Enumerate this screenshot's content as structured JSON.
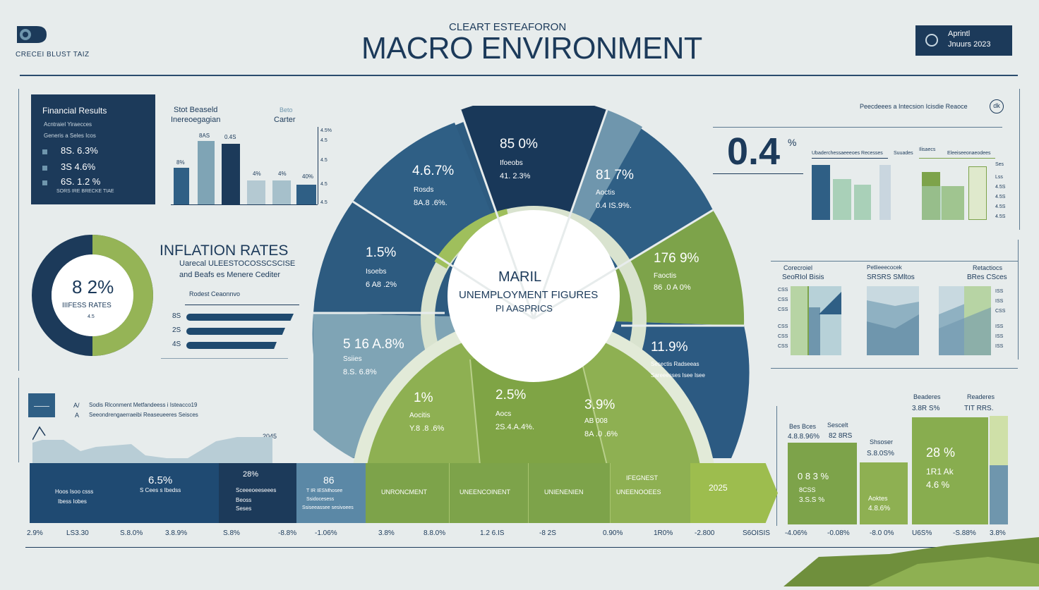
{
  "header": {
    "logo_caption": "CRECEI BLUST TAIZ",
    "kicker": "CLEART ESTEAFORON",
    "title": "MACRO ENVIRONMENT",
    "date_line1": "Aprintl",
    "date_line2": "Jnuurs 2023"
  },
  "financial_panel": {
    "title": "Financial Results",
    "subtitle": "Acntraiel Yiraecces",
    "subtitle2": "Generis a Seles Icos",
    "rows": [
      "8S. 6.3%",
      "3S 4.6%",
      "6S. 1.2 %"
    ],
    "footer": "SORS IRE BRECKE TIAE"
  },
  "small_bar_chart": {
    "title1": "Stot Beaseld",
    "title2": "Inereoegagian",
    "legend1": "Beto",
    "legend2": "Carter",
    "labels": [
      "8%",
      "8AS",
      "0.4S",
      "4%",
      "4%",
      "40%"
    ],
    "axis": [
      "4.5%",
      "4.5",
      "4.5",
      "4.5",
      "4.5"
    ]
  },
  "inflation_panel": {
    "donut_value": "8 2%",
    "donut_label": "IIIFESS RATES",
    "donut_sub": "4.5",
    "title": "INFLATION RATES",
    "subtitle1": "Uarecal ULEESTOCOSSCSCISE",
    "subtitle2": "and Beafs es Menere Cediter",
    "caption": "Rodest Ceaonnvo",
    "bars": [
      {
        "label": "8S",
        "pct": 0.95
      },
      {
        "label": "2S",
        "pct": 0.87
      },
      {
        "label": "4S",
        "pct": 0.8
      }
    ]
  },
  "area_panel": {
    "legend1": "Sodis Rlconment Metfandeess i Isteacco19",
    "legend2": "Seeondrengaerraeibi Reaseueeres Seisces",
    "tag": "A/",
    "tag2": "A",
    "value": "2045"
  },
  "wheel": {
    "center_title": "MARIL",
    "center_sub": "UNEMPLOYMENT FIGURES",
    "center_sub2": "PI AASPRICS",
    "segments": [
      {
        "value": "4.6.7%",
        "label": "Rosds",
        "sub": "8A.8 .6%."
      },
      {
        "value": "85 0%",
        "label": "Ifoeobs",
        "sub": "41. 2.3%"
      },
      {
        "value": "81 7%",
        "label": "Aoctis",
        "sub": "0.4 IS.9%."
      },
      {
        "value": "1.5%",
        "label": "Isoebs",
        "sub": "6 A8 .2%"
      },
      {
        "value": "176 9%",
        "label": "Faoctis",
        "sub": "86 .0 A 0%"
      },
      {
        "value": "5 16 A.8%",
        "label": "Ssiies",
        "sub": "8.S. 6.8%"
      },
      {
        "value": "11.9%",
        "label": "Sesectis Radseeas",
        "sub": "Sareeesses Isee Isee"
      },
      {
        "value": "1%",
        "label": "Aocitis",
        "sub": "Y.8 .8 .6%"
      },
      {
        "value": "2.5%",
        "label": "Aocs",
        "sub": "2S.4.A.4%."
      },
      {
        "value": "3.9%",
        "label": "AB 008",
        "sub": "8A .0 .6%"
      }
    ]
  },
  "right_top": {
    "header": "Peecdeees a Intecsion Icisdie Reaoce",
    "big_value": "0.4",
    "unit": "%",
    "legend1": "Ubaderchessaeeeoes Recesses",
    "legend2": "Suuades",
    "legend3": "Ilisaecs",
    "legend4": "Eleeiseeonaeodees",
    "axis": [
      "Ses",
      "Lss",
      "4.5S",
      "4.5S",
      "4.5S",
      "4.5S"
    ]
  },
  "right_mid": {
    "labels": [
      "Corecroiel",
      "Petlieeecocek",
      "Retactiocs"
    ],
    "labels2": [
      "SeoRIol Bisis",
      "SRSRS SMltos",
      "BRes CSces"
    ],
    "axis_left": [
      "CSS",
      "CSS",
      "CSS",
      "CSS",
      "CSS",
      "CSS"
    ],
    "axis_right": [
      "ISS",
      "ISS",
      "CSS",
      "ISS",
      "ISS",
      "ISS"
    ]
  },
  "right_bottom": {
    "bars": [
      {
        "top": "Bes Bces",
        "topval": "4.8.8.96%",
        "value": "0 8 3 %",
        "label": "8CSS",
        "sub": "3.S.S %"
      },
      {
        "top": "Sescelt",
        "topval": "82 8RS",
        "value": "",
        "label": "",
        "sub": ""
      },
      {
        "top": "Shsoser",
        "topval": "S.8.0S%",
        "value": "",
        "label": "Aoktes",
        "sub": "4.8.6%"
      },
      {
        "top": "Beaderes",
        "topval": "3.8R S%",
        "value": "28 %",
        "label": "1R1 Ak",
        "sub": "4.6 %"
      },
      {
        "top": "Readeres",
        "topval": "TIT RRS.",
        "value": "",
        "label": "",
        "sub": ""
      }
    ]
  },
  "timeline": {
    "segments": [
      {
        "value": "6.5%",
        "line1": "Hoos Isoo csss",
        "line2": "S Cees s Ibedss",
        "line3": "Ibess Iobes"
      },
      {
        "value": "28%",
        "line1": "Sceeeoeeseees",
        "line2": "Beoss",
        "line3": "Seses"
      },
      {
        "value": "86",
        "line1": "T IR IESMhosee",
        "line2": "Ssidocesess",
        "line3": "Ssiseeassee sesivoees"
      },
      {
        "value": "",
        "line1": "UNRONCMENT",
        "line2": "",
        "line3": ""
      },
      {
        "value": "",
        "line1": "UNEENCOINENT",
        "line2": "",
        "line3": ""
      },
      {
        "value": "",
        "line1": "UNIENENIEN",
        "line2": "",
        "line3": ""
      },
      {
        "value": "",
        "line1": "IFEGNEST",
        "line2": "UNEENOOEES",
        "line3": ""
      },
      {
        "value": "",
        "line1": "2025",
        "line2": "",
        "line3": ""
      }
    ],
    "axis": [
      "2.9%",
      "LS3.30",
      "S.8.0%",
      "3.8.9%",
      "S.8%",
      "-8.8%",
      "-1.06%",
      "3.8%",
      "8.8.0%",
      "1.2 6.IS",
      "-8 2S",
      "0.90%",
      "1R0%",
      "-2.800",
      "S6OISIS",
      "-4.06%",
      "-0.08%",
      "-8.0 0%",
      "U6S%",
      "-S.88%",
      "3.8%"
    ]
  },
  "colors": {
    "navy": "#1c3a5a",
    "blue": "#2f5f85",
    "steel": "#6f96ad",
    "green": "#7da34a",
    "light_green": "#a8c46e",
    "bg": "#e7ecec"
  }
}
